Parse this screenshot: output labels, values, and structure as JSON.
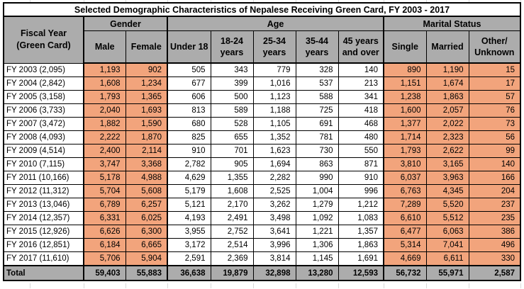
{
  "chart_data": {
    "type": "table",
    "title": "Selected Demographic Characteristics of Nepalese Receiving Green Card, FY 2003 - 2017",
    "row_header": "Fiscal Year\n(Green Card)",
    "column_groups": [
      {
        "label": "Gender",
        "span": 2
      },
      {
        "label": "Age",
        "span": 5
      },
      {
        "label": "Marital Status",
        "span": 3
      }
    ],
    "columns": [
      "Male",
      "Female",
      "Under 18",
      "18-24\nyears",
      "25-34\nyears",
      "35-44\nyears",
      "45 years\nand over",
      "Single",
      "Married",
      "Other/\nUnknown"
    ],
    "rows": [
      {
        "label": "FY 2003 (2,095)",
        "values": [
          "1,193",
          "902",
          "505",
          "343",
          "779",
          "328",
          "140",
          "890",
          "1,190",
          "15"
        ]
      },
      {
        "label": "FY 2004 (2,842)",
        "values": [
          "1,608",
          "1,234",
          "677",
          "399",
          "1,016",
          "537",
          "213",
          "1,151",
          "1,674",
          "17"
        ]
      },
      {
        "label": "FY 2005 (3,158)",
        "values": [
          "1,793",
          "1,365",
          "606",
          "500",
          "1,123",
          "588",
          "341",
          "1,238",
          "1,863",
          "57"
        ]
      },
      {
        "label": "FY 2006 (3,733)",
        "values": [
          "2,040",
          "1,693",
          "813",
          "589",
          "1,188",
          "725",
          "418",
          "1,600",
          "2,057",
          "76"
        ]
      },
      {
        "label": "FY 2007 (3,472)",
        "values": [
          "1,882",
          "1,590",
          "680",
          "528",
          "1,105",
          "691",
          "468",
          "1,377",
          "2,022",
          "73"
        ]
      },
      {
        "label": "FY 2008 (4,093)",
        "values": [
          "2,222",
          "1,870",
          "825",
          "655",
          "1,352",
          "781",
          "480",
          "1,714",
          "2,323",
          "56"
        ]
      },
      {
        "label": "FY 2009 (4,514)",
        "values": [
          "2,400",
          "2,114",
          "910",
          "701",
          "1,623",
          "730",
          "550",
          "1,793",
          "2,622",
          "99"
        ]
      },
      {
        "label": "FY 2010 (7,115)",
        "values": [
          "3,747",
          "3,368",
          "2,782",
          "905",
          "1,694",
          "863",
          "871",
          "3,810",
          "3,165",
          "140"
        ]
      },
      {
        "label": "FY 2011 (10,166)",
        "values": [
          "5,178",
          "4,988",
          "4,629",
          "1,355",
          "2,282",
          "990",
          "910",
          "6,037",
          "3,963",
          "166"
        ]
      },
      {
        "label": "FY 2012 (11,312)",
        "values": [
          "5,704",
          "5,608",
          "5,179",
          "1,608",
          "2,525",
          "1,004",
          "996",
          "6,763",
          "4,345",
          "204"
        ]
      },
      {
        "label": "FY 2013 (13,046)",
        "values": [
          "6,789",
          "6,257",
          "5,121",
          "2,170",
          "3,262",
          "1,279",
          "1,212",
          "7,289",
          "5,520",
          "237"
        ]
      },
      {
        "label": "FY 2014 (12,357)",
        "values": [
          "6,331",
          "6,025",
          "4,193",
          "2,491",
          "3,498",
          "1,092",
          "1,083",
          "6,610",
          "5,512",
          "235"
        ]
      },
      {
        "label": "FY 2015 (12,926)",
        "values": [
          "6,626",
          "6,300",
          "3,955",
          "2,752",
          "3,641",
          "1,221",
          "1,357",
          "6,477",
          "6,063",
          "386"
        ]
      },
      {
        "label": "FY 2016 (12,851)",
        "values": [
          "6,184",
          "6,665",
          "3,172",
          "2,514",
          "3,996",
          "1,306",
          "1,863",
          "5,314",
          "7,041",
          "496"
        ]
      },
      {
        "label": "FY 2017 (11,610)",
        "values": [
          "5,706",
          "5,904",
          "2,591",
          "2,369",
          "3,814",
          "1,145",
          "1,691",
          "4,669",
          "6,611",
          "330"
        ]
      }
    ],
    "total": {
      "label": "Total",
      "values": [
        "59,403",
        "55,883",
        "36,638",
        "19,879",
        "32,898",
        "13,280",
        "12,593",
        "56,732",
        "55,971",
        "2,587"
      ]
    },
    "highlighted_columns": [
      "Male",
      "Female",
      "Single",
      "Married",
      "Other/Unknown"
    ]
  },
  "colors": {
    "header_bg": "#ACACAC",
    "highlight_bg": "#F2A47C",
    "total_bg": "#ACACAC",
    "border": "#000000",
    "gridline_faint": "#D9D9D9"
  }
}
